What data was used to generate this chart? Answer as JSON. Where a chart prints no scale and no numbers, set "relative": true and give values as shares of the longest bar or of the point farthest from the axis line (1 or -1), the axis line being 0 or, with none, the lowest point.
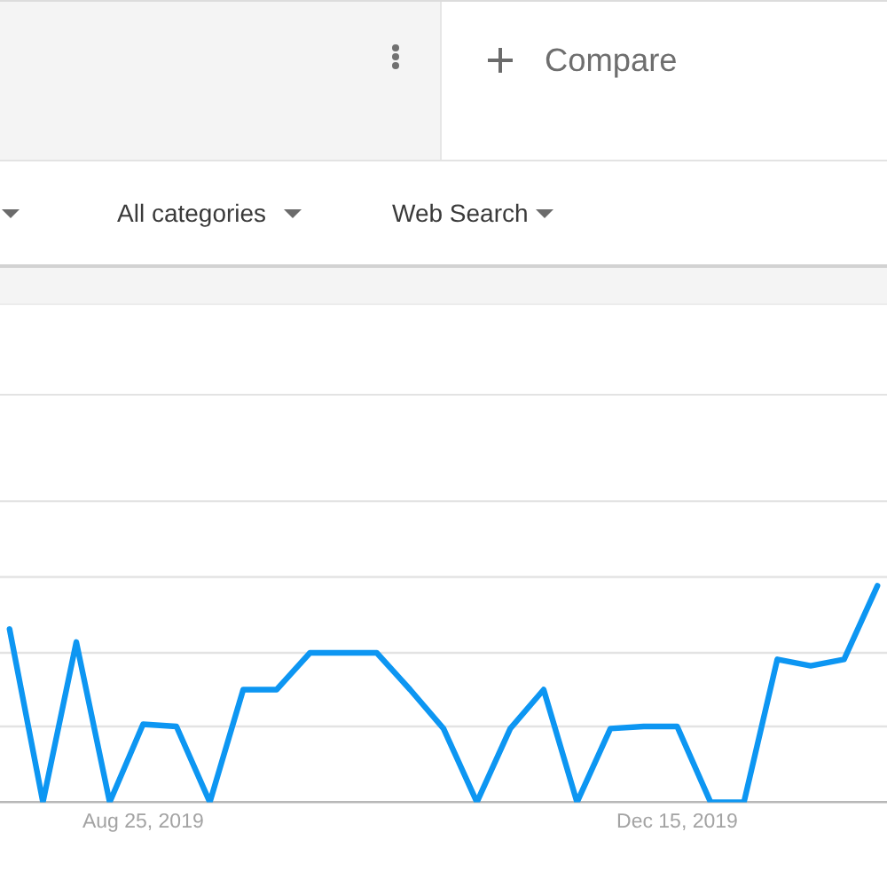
{
  "chart_data": {
    "type": "line",
    "relative": true,
    "x": [
      "2019-07-28",
      "2019-08-04",
      "2019-08-11",
      "2019-08-18",
      "2019-08-25",
      "2019-09-01",
      "2019-09-08",
      "2019-09-15",
      "2019-09-22",
      "2019-09-29",
      "2019-10-06",
      "2019-10-13",
      "2019-10-20",
      "2019-10-27",
      "2019-11-03",
      "2019-11-10",
      "2019-11-17",
      "2019-11-24",
      "2019-12-01",
      "2019-12-08",
      "2019-12-15",
      "2019-12-22",
      "2019-12-29",
      "2020-01-05",
      "2020-01-12",
      "2020-01-19",
      "2020-01-26"
    ],
    "series": [
      {
        "color": "#0d96f2",
        "values": [
          0.8,
          0,
          0.74,
          0,
          0.36,
          0.35,
          0,
          0.52,
          0.52,
          0.69,
          0.69,
          0.69,
          0.52,
          0.34,
          0,
          0.34,
          0.52,
          0,
          0.34,
          0.35,
          0.35,
          0,
          0,
          0.66,
          0.63,
          0.66,
          1
        ]
      }
    ],
    "xlim": [
      "2019-07-26",
      "2020-01-28"
    ],
    "xticks": [
      {
        "value": "2019-08-25",
        "label": "Aug 25, 2019"
      },
      {
        "value": "2019-12-15",
        "label": "Dec 15, 2019"
      }
    ],
    "ref_lines": [
      {
        "axis": "y",
        "value": 0.35,
        "color": "#e3e3e3"
      },
      {
        "axis": "y",
        "value": 0.69,
        "color": "#e3e3e3"
      },
      {
        "axis": "y",
        "value": 1.04,
        "color": "#e3e3e3"
      },
      {
        "axis": "y",
        "value": 1.39,
        "color": "#e3e3e3"
      }
    ],
    "annotations": [
      "Compare",
      "All categories",
      "Web Search"
    ]
  }
}
